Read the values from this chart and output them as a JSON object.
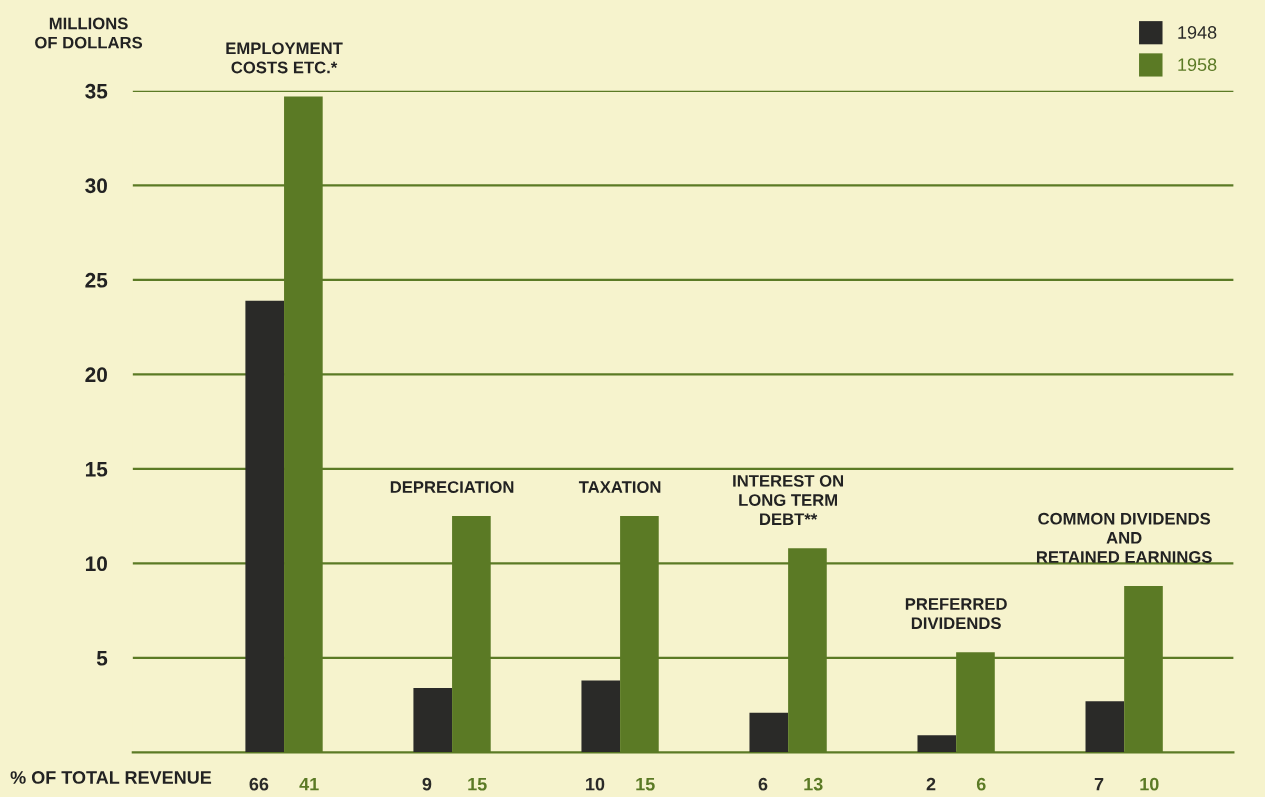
{
  "chart_data": {
    "type": "bar",
    "ylabel": "MILLIONS\nOF DOLLARS",
    "categories": [
      "EMPLOYMENT\nCOSTS ETC.*",
      "DEPRECIATION",
      "TAXATION",
      "INTEREST ON\nLONG TERM\nDEBT**",
      "PREFERRED\nDIVIDENDS",
      "COMMON DIVIDENDS\nAND\nRETAINED EARNINGS"
    ],
    "series": [
      {
        "name": "1948",
        "color": "#2a2a28",
        "values": [
          23.9,
          3.4,
          3.8,
          2.1,
          0.9,
          2.7
        ]
      },
      {
        "name": "1958",
        "color": "#5b7a25",
        "values": [
          34.7,
          12.5,
          12.5,
          10.8,
          5.3,
          8.8
        ]
      }
    ],
    "ylim": [
      0,
      35
    ],
    "yticks": [
      5,
      10,
      15,
      20,
      25,
      30,
      35
    ],
    "grid": "y",
    "legend": "top right",
    "annotations": [
      "% OF TOTAL REVENUE",
      "66",
      "41",
      "9",
      "15",
      "10",
      "15",
      "6",
      "13",
      "2",
      "6",
      "7",
      "10"
    ]
  }
}
